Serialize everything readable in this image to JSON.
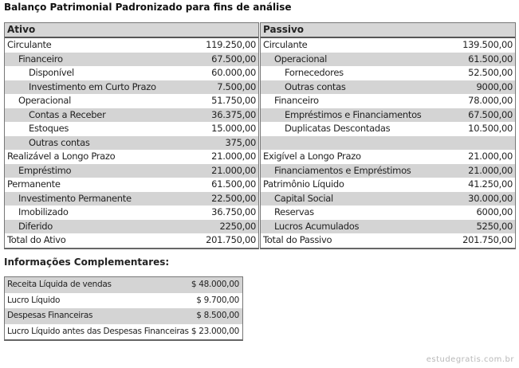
{
  "title": "Balanço Patrimonial Padronizado para fins de análise",
  "ativo": {
    "header": "Ativo",
    "rows": [
      {
        "label": "Circulante",
        "value": "119.250,00",
        "level": 0
      },
      {
        "label": "Financeiro",
        "value": "67.500,00",
        "level": 1
      },
      {
        "label": "Disponível",
        "value": "60.000,00",
        "level": 2
      },
      {
        "label": "Investimento em Curto Prazo",
        "value": "7.500,00",
        "level": 2
      },
      {
        "label": "Operacional",
        "value": "51.750,00",
        "level": 1
      },
      {
        "label": "Contas a Receber",
        "value": "36.375,00",
        "level": 2
      },
      {
        "label": "Estoques",
        "value": "15.000,00",
        "level": 2
      },
      {
        "label": "Outras contas",
        "value": "375,00",
        "level": 2
      },
      {
        "label": "Realizável a Longo Prazo",
        "value": "21.000,00",
        "level": 0
      },
      {
        "label": "Empréstimo",
        "value": "21.000,00",
        "level": 1
      },
      {
        "label": "Permanente",
        "value": "61.500,00",
        "level": 0
      },
      {
        "label": "Investimento Permanente",
        "value": "22.500,00",
        "level": 1
      },
      {
        "label": "Imobilizado",
        "value": "36.750,00",
        "level": 1
      },
      {
        "label": "Diferido",
        "value": "2250,00",
        "level": 1
      },
      {
        "label": "Total do Ativo",
        "value": "201.750,00",
        "level": 0
      }
    ]
  },
  "passivo": {
    "header": "Passivo",
    "rows": [
      {
        "label": "Circulante",
        "value": "139.500,00",
        "level": 0
      },
      {
        "label": "Operacional",
        "value": "61.500,00",
        "level": 1
      },
      {
        "label": "Fornecedores",
        "value": "52.500,00",
        "level": 2
      },
      {
        "label": "Outras contas",
        "value": "9000,00",
        "level": 2
      },
      {
        "label": "Financeiro",
        "value": "78.000,00",
        "level": 1
      },
      {
        "label": "Empréstimos e Financiamentos",
        "value": "67.500,00",
        "level": 2
      },
      {
        "label": "Duplicatas Descontadas",
        "value": "10.500,00",
        "level": 2
      },
      {
        "label": "",
        "value": "",
        "level": 0
      },
      {
        "label": "Exigível a Longo Prazo",
        "value": "21.000,00",
        "level": 0
      },
      {
        "label": "Financiamentos e Empréstimos",
        "value": "21.000,00",
        "level": 1
      },
      {
        "label": "Patrimônio Líquido",
        "value": "41.250,00",
        "level": 0
      },
      {
        "label": "Capital Social",
        "value": "30.000,00",
        "level": 1
      },
      {
        "label": "Reservas",
        "value": "6000,00",
        "level": 1
      },
      {
        "label": "Lucros Acumulados",
        "value": "5250,00",
        "level": 1
      },
      {
        "label": "Total do Passivo",
        "value": "201.750,00",
        "level": 0
      }
    ]
  },
  "complementares": {
    "title": "Informações Complementares:",
    "rows": [
      {
        "label": "Receita Líquida de vendas",
        "value": "$ 48.000,00"
      },
      {
        "label": "Lucro Líquido",
        "value": "$ 9.700,00"
      },
      {
        "label": "Despesas Financeiras",
        "value": "$ 8.500,00"
      },
      {
        "label": "Lucro Líquido antes das Despesas Financeiras",
        "value": "$ 23.000,00"
      }
    ]
  },
  "watermark": "estudegratis.com.br"
}
